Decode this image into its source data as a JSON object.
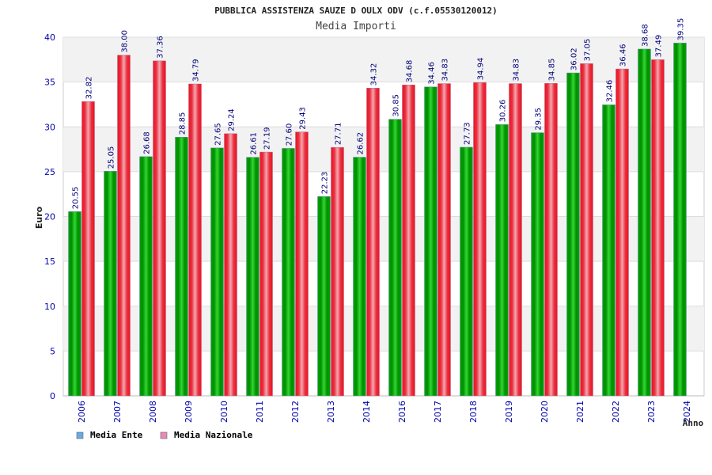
{
  "chart_data": {
    "type": "bar",
    "title": "PUBBLICA ASSISTENZA SAUZE D OULX ODV (c.f.05530120012)",
    "subtitle": "Media Importi",
    "xlabel": "Anno",
    "ylabel": "Euro",
    "ylim": [
      0,
      40
    ],
    "yticks": [
      0,
      5,
      10,
      15,
      20,
      25,
      30,
      35,
      40
    ],
    "grid": true,
    "legend_position": "bottom-left",
    "categories": [
      "2006",
      "2007",
      "2008",
      "2009",
      "2010",
      "2011",
      "2012",
      "2013",
      "2014",
      "2016",
      "2017",
      "2018",
      "2019",
      "2020",
      "2021",
      "2022",
      "2023",
      "2024"
    ],
    "series": [
      {
        "name": "Media Ente",
        "color": "#00a000",
        "legend_color": "#6aa8e8",
        "values": [
          20.55,
          25.05,
          26.68,
          28.85,
          27.65,
          26.61,
          27.6,
          22.23,
          26.62,
          30.85,
          34.46,
          27.73,
          30.26,
          29.35,
          36.02,
          32.46,
          38.68,
          39.35
        ],
        "labels": [
          "20.55",
          "25.05",
          "26.68",
          "28.85",
          "27.65",
          "26.61",
          "27.60",
          "22.23",
          "26.62",
          "30.85",
          "34.46",
          "27.73",
          "30.26",
          "29.35",
          "36.02",
          "32.46",
          "38.68",
          "39.35"
        ]
      },
      {
        "name": "Media Nazionale",
        "color": "#e8202a",
        "legend_color": "#e88ab8",
        "values": [
          32.82,
          38.0,
          37.36,
          34.79,
          29.24,
          27.19,
          29.43,
          27.71,
          34.32,
          34.68,
          34.83,
          34.94,
          34.83,
          34.85,
          37.05,
          36.46,
          37.49,
          null
        ],
        "labels": [
          "32.82",
          "38.00",
          "37.36",
          "34.79",
          "29.24",
          "27.19",
          "29.43",
          "27.71",
          "34.32",
          "34.68",
          "34.83",
          "34.94",
          "34.83",
          "34.85",
          "37.05",
          "36.46",
          "37.49",
          null
        ]
      }
    ]
  }
}
